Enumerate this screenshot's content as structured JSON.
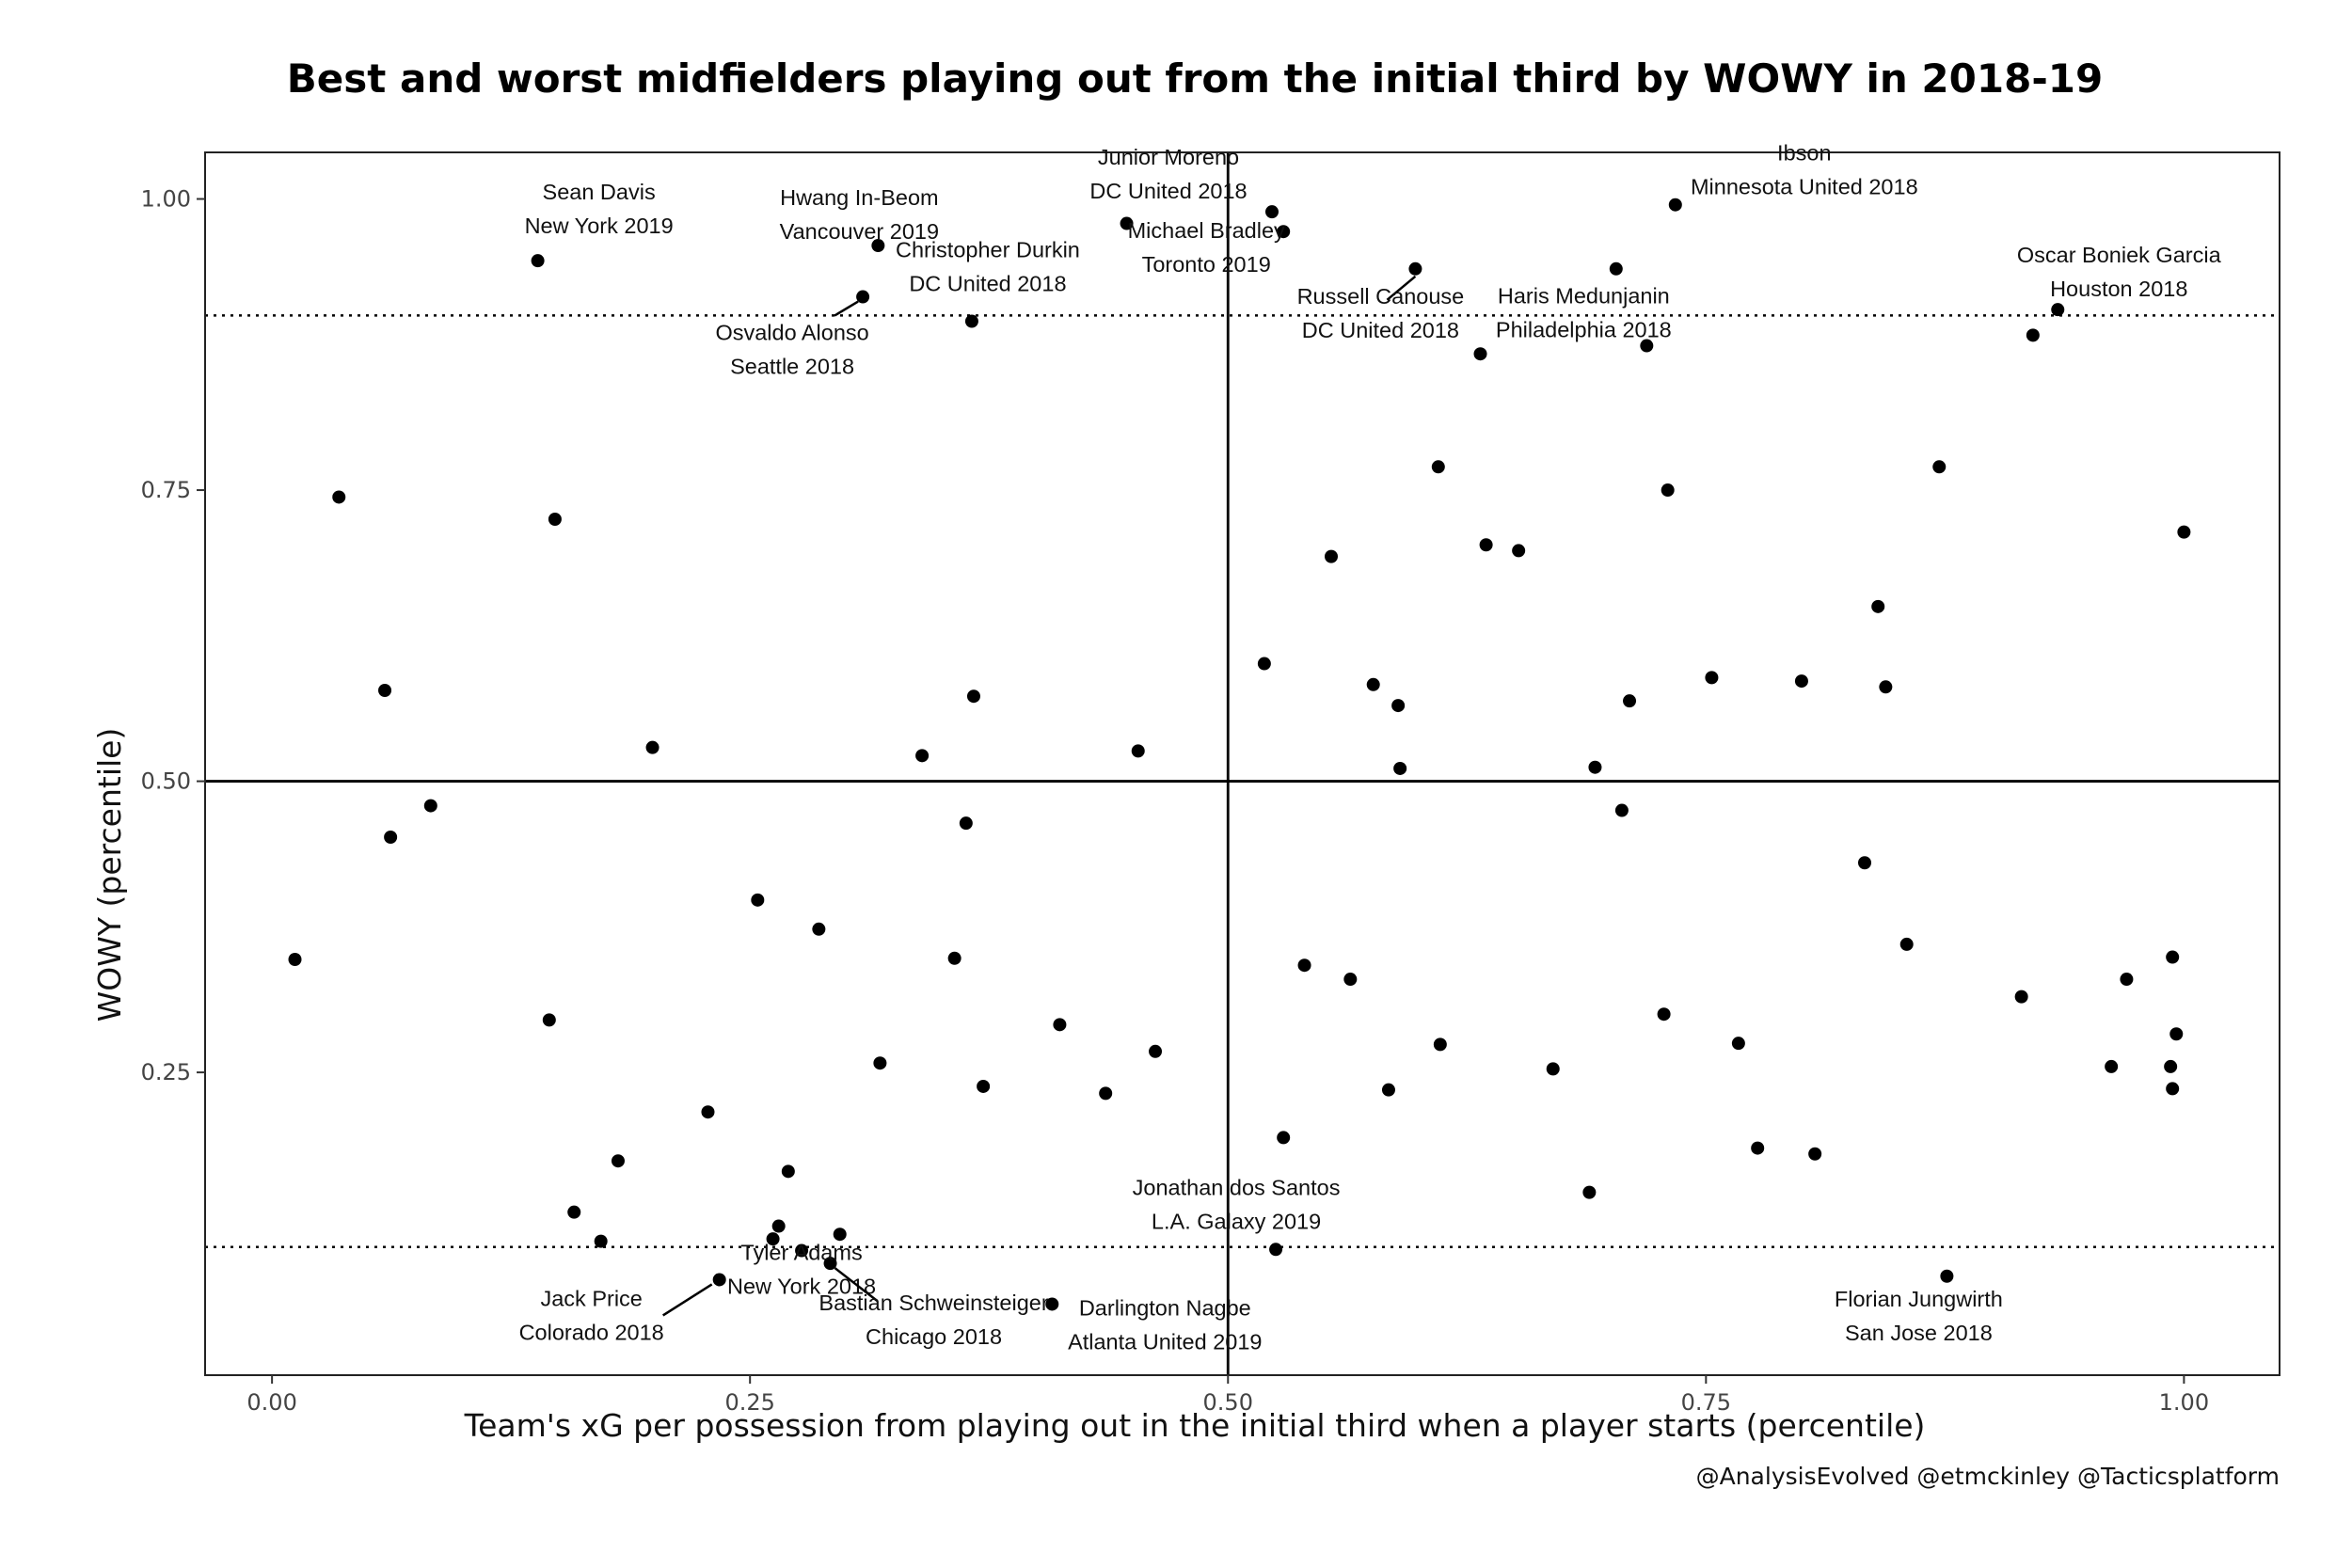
{
  "chart_data": {
    "type": "scatter",
    "title": "Best and worst midfielders playing out from the initial third by WOWY in 2018-19",
    "xlabel": "Team's xG per possession from playing out in the initial third when a player starts (percentile)",
    "ylabel": "WOWY (percentile)",
    "caption": "@AnalysisEvolved @etmckinley @Tacticsplatform",
    "xlim": [
      -0.035,
      1.05
    ],
    "ylim": [
      -0.01,
      1.04
    ],
    "x_ticks": [
      {
        "value": 0.0,
        "label": "0.00"
      },
      {
        "value": 0.25,
        "label": "0.25"
      },
      {
        "value": 0.5,
        "label": "0.50"
      },
      {
        "value": 0.75,
        "label": "0.75"
      },
      {
        "value": 1.0,
        "label": "1.00"
      }
    ],
    "y_ticks": [
      {
        "value": 0.25,
        "label": "0.25"
      },
      {
        "value": 0.5,
        "label": "0.50"
      },
      {
        "value": 0.75,
        "label": "0.75"
      },
      {
        "value": 1.0,
        "label": "1.00"
      }
    ],
    "reference_lines": {
      "solid_vertical_x": 0.5,
      "solid_horizontal_y": 0.5,
      "dotted_horizontal_y": [
        0.9,
        0.1
      ]
    },
    "grid": false,
    "legend": "none",
    "points": [
      {
        "x": 0.012,
        "y": 0.347
      },
      {
        "x": 0.035,
        "y": 0.744
      },
      {
        "x": 0.059,
        "y": 0.578
      },
      {
        "x": 0.062,
        "y": 0.452
      },
      {
        "x": 0.083,
        "y": 0.479
      },
      {
        "x": 0.139,
        "y": 0.947
      },
      {
        "x": 0.145,
        "y": 0.295
      },
      {
        "x": 0.148,
        "y": 0.725
      },
      {
        "x": 0.158,
        "y": 0.13
      },
      {
        "x": 0.172,
        "y": 0.105
      },
      {
        "x": 0.181,
        "y": 0.174
      },
      {
        "x": 0.199,
        "y": 0.529
      },
      {
        "x": 0.228,
        "y": 0.216
      },
      {
        "x": 0.234,
        "y": 0.072
      },
      {
        "x": 0.254,
        "y": 0.398
      },
      {
        "x": 0.262,
        "y": 0.107
      },
      {
        "x": 0.265,
        "y": 0.118
      },
      {
        "x": 0.27,
        "y": 0.165
      },
      {
        "x": 0.277,
        "y": 0.097
      },
      {
        "x": 0.286,
        "y": 0.373
      },
      {
        "x": 0.292,
        "y": 0.086
      },
      {
        "x": 0.297,
        "y": 0.111
      },
      {
        "x": 0.309,
        "y": 0.916
      },
      {
        "x": 0.317,
        "y": 0.96
      },
      {
        "x": 0.318,
        "y": 0.258
      },
      {
        "x": 0.34,
        "y": 0.522
      },
      {
        "x": 0.357,
        "y": 0.348
      },
      {
        "x": 0.363,
        "y": 0.464
      },
      {
        "x": 0.366,
        "y": 0.895
      },
      {
        "x": 0.367,
        "y": 0.573
      },
      {
        "x": 0.372,
        "y": 0.238
      },
      {
        "x": 0.408,
        "y": 0.051
      },
      {
        "x": 0.412,
        "y": 0.291
      },
      {
        "x": 0.436,
        "y": 0.232
      },
      {
        "x": 0.447,
        "y": 0.979
      },
      {
        "x": 0.453,
        "y": 0.526
      },
      {
        "x": 0.462,
        "y": 0.268
      },
      {
        "x": 0.519,
        "y": 0.601
      },
      {
        "x": 0.523,
        "y": 0.989
      },
      {
        "x": 0.525,
        "y": 0.098
      },
      {
        "x": 0.529,
        "y": 0.972
      },
      {
        "x": 0.529,
        "y": 0.194
      },
      {
        "x": 0.54,
        "y": 0.342
      },
      {
        "x": 0.554,
        "y": 0.693
      },
      {
        "x": 0.564,
        "y": 0.33
      },
      {
        "x": 0.576,
        "y": 0.583
      },
      {
        "x": 0.584,
        "y": 0.235
      },
      {
        "x": 0.589,
        "y": 0.565
      },
      {
        "x": 0.59,
        "y": 0.511
      },
      {
        "x": 0.598,
        "y": 0.94
      },
      {
        "x": 0.61,
        "y": 0.77
      },
      {
        "x": 0.611,
        "y": 0.274
      },
      {
        "x": 0.632,
        "y": 0.867
      },
      {
        "x": 0.635,
        "y": 0.703
      },
      {
        "x": 0.652,
        "y": 0.698
      },
      {
        "x": 0.67,
        "y": 0.253
      },
      {
        "x": 0.689,
        "y": 0.147
      },
      {
        "x": 0.692,
        "y": 0.512
      },
      {
        "x": 0.703,
        "y": 0.94
      },
      {
        "x": 0.706,
        "y": 0.475
      },
      {
        "x": 0.71,
        "y": 0.569
      },
      {
        "x": 0.719,
        "y": 0.874
      },
      {
        "x": 0.728,
        "y": 0.3
      },
      {
        "x": 0.73,
        "y": 0.75
      },
      {
        "x": 0.734,
        "y": 0.995
      },
      {
        "x": 0.753,
        "y": 0.589
      },
      {
        "x": 0.767,
        "y": 0.275
      },
      {
        "x": 0.777,
        "y": 0.185
      },
      {
        "x": 0.8,
        "y": 0.586
      },
      {
        "x": 0.807,
        "y": 0.18
      },
      {
        "x": 0.833,
        "y": 0.43
      },
      {
        "x": 0.84,
        "y": 0.65
      },
      {
        "x": 0.844,
        "y": 0.581
      },
      {
        "x": 0.855,
        "y": 0.36
      },
      {
        "x": 0.872,
        "y": 0.77
      },
      {
        "x": 0.876,
        "y": 0.075
      },
      {
        "x": 0.915,
        "y": 0.315
      },
      {
        "x": 0.921,
        "y": 0.883
      },
      {
        "x": 0.934,
        "y": 0.905
      },
      {
        "x": 0.962,
        "y": 0.255
      },
      {
        "x": 0.97,
        "y": 0.33
      },
      {
        "x": 0.993,
        "y": 0.255
      },
      {
        "x": 0.994,
        "y": 0.349
      },
      {
        "x": 0.994,
        "y": 0.236
      },
      {
        "x": 0.996,
        "y": 0.283
      },
      {
        "x": 1.0,
        "y": 0.714
      }
    ],
    "annotations": [
      {
        "name": "Sean Davis",
        "team": "New York 2019",
        "x": 0.139,
        "y": 0.947
      },
      {
        "name": "Hwang In-Beom",
        "team": "Vancouver 2019",
        "x": 0.317,
        "y": 0.96
      },
      {
        "name": "Junior Moreno",
        "team": "DC United 2018",
        "x": 0.523,
        "y": 0.989
      },
      {
        "name": "Ibson",
        "team": "Minnesota United 2018",
        "x": 0.734,
        "y": 0.995
      },
      {
        "name": "Christopher Durkin",
        "team": "DC United 2018",
        "x": 0.366,
        "y": 0.895
      },
      {
        "name": "Michael Bradley",
        "team": "Toronto 2019",
        "x": 0.529,
        "y": 0.972
      },
      {
        "name": "Oscar Boniek Garcia",
        "team": "Houston 2018",
        "x": 0.934,
        "y": 0.905
      },
      {
        "name": "Haris Medunjanin",
        "team": "Philadelphia 2018",
        "x": 0.719,
        "y": 0.874
      },
      {
        "name": "Russell Canouse",
        "team": "DC United 2018",
        "x": 0.598,
        "y": 0.94
      },
      {
        "name": "Osvaldo Alonso",
        "team": "Seattle 2018",
        "x": 0.309,
        "y": 0.916
      },
      {
        "name": "Jonathan dos Santos",
        "team": "L.A. Galaxy 2019",
        "x": 0.525,
        "y": 0.098
      },
      {
        "name": "Tyler Adams",
        "team": "New York 2018",
        "x": 0.277,
        "y": 0.097
      },
      {
        "name": "Jack Price",
        "team": "Colorado 2018",
        "x": 0.234,
        "y": 0.072
      },
      {
        "name": "Bastian Schweinsteiger",
        "team": "Chicago 2018",
        "x": 0.292,
        "y": 0.086
      },
      {
        "name": "Darlington Nagbe",
        "team": "Atlanta United 2019",
        "x": 0.408,
        "y": 0.051
      },
      {
        "name": "Florian Jungwirth",
        "team": "San Jose 2018",
        "x": 0.876,
        "y": 0.075
      }
    ]
  }
}
